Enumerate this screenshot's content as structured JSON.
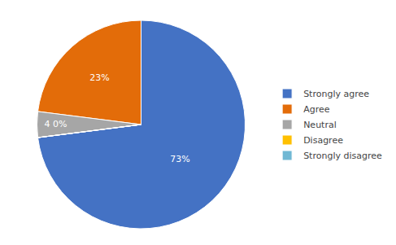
{
  "chart_data": {
    "type": "pie",
    "categories": [
      "Strongly agree",
      "Agree",
      "Neutral",
      "Disagree",
      "Strongly disagree"
    ],
    "values": [
      73,
      23,
      4,
      0.001,
      0.001
    ],
    "value_labels": [
      "73%",
      "23%",
      "4 0%",
      null,
      null
    ],
    "colors": [
      "#4472C4",
      "#E36C09",
      "#A6A6A6",
      "#FFC000",
      "#70B8D4"
    ],
    "data_labels": true,
    "legend": "right"
  }
}
